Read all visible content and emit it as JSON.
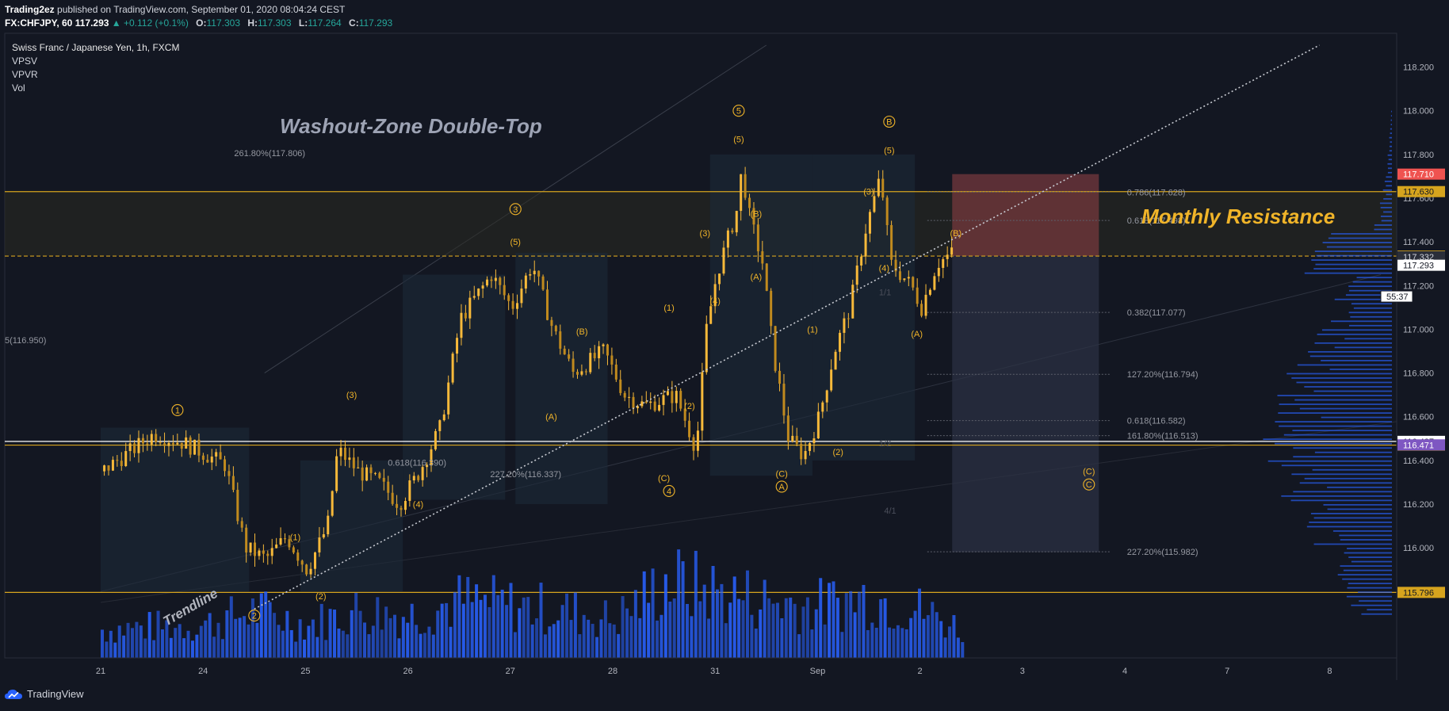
{
  "header": {
    "author": "Trading2ez",
    "published": "published on TradingView.com, September 01, 2020 08:04:24 CEST",
    "symbol": "FX:CHFJPY, 60",
    "last": "117.293",
    "change": "▲ +0.112 (+0.1%)",
    "ohlc": [
      {
        "k": "O:",
        "v": "117.303"
      },
      {
        "k": "H:",
        "v": "117.303"
      },
      {
        "k": "L:",
        "v": "117.264"
      },
      {
        "k": "C:",
        "v": "117.293"
      }
    ]
  },
  "legend": {
    "title": "Swiss Franc / Japanese Yen, 1h, FXCM",
    "indicators": [
      "VPSV",
      "VPVR",
      "Vol"
    ]
  },
  "footer": {
    "brand": "TradingView"
  },
  "colors": {
    "bg": "#131722",
    "candle": "#f7b93a",
    "gold": "#d6a41e",
    "label": "#f0b429",
    "volume": "#2962ff",
    "text": "#b2b5be"
  },
  "chart_data": {
    "type": "candlestick",
    "title": "Washout-Zone Double-Top",
    "ylim": [
      115.6,
      118.3
    ],
    "x_ticks": [
      "21",
      "24",
      "25",
      "26",
      "27",
      "28",
      "31",
      "Sep",
      "2",
      "3",
      "4",
      "7",
      "8"
    ],
    "y_ticks": [
      "118.200",
      "118.000",
      "117.800",
      "117.600",
      "117.400",
      "117.200",
      "117.000",
      "116.800",
      "116.600",
      "116.400",
      "116.200",
      "116.000",
      "115.800"
    ],
    "price_path": [
      {
        "x": 0.0,
        "y": 116.35
      },
      {
        "x": 0.3,
        "y": 116.45
      },
      {
        "x": 0.5,
        "y": 116.52
      },
      {
        "x": 0.8,
        "y": 116.48
      },
      {
        "x": 1.2,
        "y": 116.38
      },
      {
        "x": 1.4,
        "y": 116.0
      },
      {
        "x": 1.6,
        "y": 115.95
      },
      {
        "x": 1.8,
        "y": 116.05
      },
      {
        "x": 2.0,
        "y": 115.9
      },
      {
        "x": 2.2,
        "y": 116.1
      },
      {
        "x": 2.3,
        "y": 116.45
      },
      {
        "x": 2.5,
        "y": 116.35
      },
      {
        "x": 2.7,
        "y": 116.3
      },
      {
        "x": 2.9,
        "y": 116.2
      },
      {
        "x": 3.1,
        "y": 116.35
      },
      {
        "x": 3.3,
        "y": 116.55
      },
      {
        "x": 3.5,
        "y": 117.05
      },
      {
        "x": 3.8,
        "y": 117.25
      },
      {
        "x": 4.0,
        "y": 117.1
      },
      {
        "x": 4.2,
        "y": 117.3
      },
      {
        "x": 4.4,
        "y": 117.0
      },
      {
        "x": 4.6,
        "y": 116.8
      },
      {
        "x": 4.9,
        "y": 116.9
      },
      {
        "x": 5.1,
        "y": 116.7
      },
      {
        "x": 5.3,
        "y": 116.65
      },
      {
        "x": 5.6,
        "y": 116.7
      },
      {
        "x": 5.8,
        "y": 116.45
      },
      {
        "x": 5.9,
        "y": 117.0
      },
      {
        "x": 6.0,
        "y": 117.25
      },
      {
        "x": 6.1,
        "y": 117.4
      },
      {
        "x": 6.2,
        "y": 117.55
      },
      {
        "x": 6.25,
        "y": 117.75
      },
      {
        "x": 6.3,
        "y": 117.55
      },
      {
        "x": 6.45,
        "y": 117.3
      },
      {
        "x": 6.55,
        "y": 116.9
      },
      {
        "x": 6.7,
        "y": 116.5
      },
      {
        "x": 6.85,
        "y": 116.42
      },
      {
        "x": 7.0,
        "y": 116.6
      },
      {
        "x": 7.15,
        "y": 116.9
      },
      {
        "x": 7.3,
        "y": 117.1
      },
      {
        "x": 7.45,
        "y": 117.45
      },
      {
        "x": 7.6,
        "y": 117.7
      },
      {
        "x": 7.7,
        "y": 117.3
      },
      {
        "x": 7.9,
        "y": 117.2
      },
      {
        "x": 8.0,
        "y": 117.1
      },
      {
        "x": 8.15,
        "y": 117.3
      },
      {
        "x": 8.3,
        "y": 117.35
      }
    ],
    "volume_path": [
      {
        "x": 0.0,
        "y": 0.3
      },
      {
        "x": 1.0,
        "y": 0.35
      },
      {
        "x": 1.5,
        "y": 0.5
      },
      {
        "x": 2.0,
        "y": 0.35
      },
      {
        "x": 2.5,
        "y": 0.5
      },
      {
        "x": 3.0,
        "y": 0.45
      },
      {
        "x": 3.5,
        "y": 0.6
      },
      {
        "x": 4.0,
        "y": 0.55
      },
      {
        "x": 4.5,
        "y": 0.5
      },
      {
        "x": 5.0,
        "y": 0.4
      },
      {
        "x": 5.5,
        "y": 0.8
      },
      {
        "x": 6.0,
        "y": 0.7
      },
      {
        "x": 6.5,
        "y": 0.6
      },
      {
        "x": 7.0,
        "y": 0.55
      },
      {
        "x": 7.5,
        "y": 0.65
      },
      {
        "x": 8.0,
        "y": 0.5
      },
      {
        "x": 8.4,
        "y": 0.3
      }
    ],
    "horizontal_levels": [
      {
        "y": 117.63,
        "label": "117.630",
        "style": "solid",
        "color": "#d6a41e"
      },
      {
        "y": 117.335,
        "label": "117.335",
        "style": "dashed",
        "color": "#d6a41e"
      },
      {
        "y": 116.487,
        "label": "116.487",
        "style": "solid",
        "color": "#ffffff"
      },
      {
        "y": 116.47,
        "label": "116.470",
        "style": "solid",
        "color": "#d6a41e"
      },
      {
        "y": 115.796,
        "label": "115.796",
        "style": "solid",
        "color": "#d6a41e"
      }
    ],
    "price_labels": [
      {
        "y": 117.71,
        "text": "117.710",
        "bg": "#ef5350",
        "fg": "#ffffff"
      },
      {
        "y": 117.332,
        "text": "117.332",
        "bg": "#2a2e39",
        "fg": "#d1d4dc"
      },
      {
        "y": 117.293,
        "text": "117.293",
        "bg": "#ffffff",
        "fg": "#131722"
      },
      {
        "y": 117.15,
        "text": "55:37",
        "bg": "#ffffff",
        "fg": "#131722"
      },
      {
        "y": 116.471,
        "text": "116.471",
        "bg": "#7e57c2",
        "fg": "#ffffff"
      }
    ],
    "fib_labels": [
      {
        "x": 9.0,
        "y": 117.628,
        "text": "0.786(117.628)"
      },
      {
        "x": 9.0,
        "y": 117.498,
        "text": "0.618(117.498)"
      },
      {
        "x": 9.0,
        "y": 117.077,
        "text": "0.382(117.077)"
      },
      {
        "x": 9.0,
        "y": 116.794,
        "text": "127.20%(116.794)"
      },
      {
        "x": 9.0,
        "y": 116.582,
        "text": "0.618(116.582)"
      },
      {
        "x": 9.0,
        "y": 116.513,
        "text": "161.80%(116.513)"
      },
      {
        "x": 9.0,
        "y": 115.982,
        "text": "227.20%(115.982)"
      },
      {
        "x": 2.0,
        "y": 117.806,
        "text": "261.80%(117.806)"
      },
      {
        "x": 3.5,
        "y": 116.39,
        "text": "0.618(116.390)"
      },
      {
        "x": 4.5,
        "y": 116.337,
        "text": "227.20%(116.337)"
      },
      {
        "x": 0.0,
        "y": 116.95,
        "text": "5(116.950)"
      }
    ],
    "wave_labels": [
      {
        "x": 0.75,
        "y": 116.63,
        "text": "1",
        "circle": true
      },
      {
        "x": 1.9,
        "y": 116.05,
        "text": "(1)"
      },
      {
        "x": 2.45,
        "y": 116.7,
        "text": "(3)"
      },
      {
        "x": 3.1,
        "y": 116.2,
        "text": "(4)"
      },
      {
        "x": 1.5,
        "y": 115.69,
        "text": "2",
        "circle": true
      },
      {
        "x": 2.15,
        "y": 115.78,
        "text": "(2)"
      },
      {
        "x": 4.05,
        "y": 117.4,
        "text": "(5)"
      },
      {
        "x": 4.05,
        "y": 117.55,
        "text": "3",
        "circle": true
      },
      {
        "x": 4.7,
        "y": 116.99,
        "text": "(B)"
      },
      {
        "x": 4.4,
        "y": 116.6,
        "text": "(A)"
      },
      {
        "x": 5.75,
        "y": 116.65,
        "text": "(2)"
      },
      {
        "x": 5.55,
        "y": 117.1,
        "text": "(1)"
      },
      {
        "x": 5.5,
        "y": 116.32,
        "text": "(C)"
      },
      {
        "x": 5.55,
        "y": 116.26,
        "text": "4",
        "circle": true
      },
      {
        "x": 5.9,
        "y": 117.44,
        "text": "(3)"
      },
      {
        "x": 6.0,
        "y": 117.13,
        "text": "(4)"
      },
      {
        "x": 6.23,
        "y": 117.87,
        "text": "(5)"
      },
      {
        "x": 6.23,
        "y": 118.0,
        "text": "5",
        "circle": true
      },
      {
        "x": 6.4,
        "y": 117.53,
        "text": "(B)"
      },
      {
        "x": 6.4,
        "y": 117.24,
        "text": "(A)"
      },
      {
        "x": 6.65,
        "y": 116.34,
        "text": "(C)"
      },
      {
        "x": 6.65,
        "y": 116.28,
        "text": "A",
        "circle": true
      },
      {
        "x": 7.2,
        "y": 116.44,
        "text": "(2)"
      },
      {
        "x": 6.95,
        "y": 117.0,
        "text": "(1)"
      },
      {
        "x": 7.5,
        "y": 117.63,
        "text": "(3)"
      },
      {
        "x": 7.65,
        "y": 117.28,
        "text": "(4)"
      },
      {
        "x": 7.7,
        "y": 117.82,
        "text": "(5)"
      },
      {
        "x": 7.7,
        "y": 117.95,
        "text": "B",
        "circle": true
      },
      {
        "x": 7.97,
        "y": 116.98,
        "text": "(A)"
      },
      {
        "x": 8.35,
        "y": 117.44,
        "text": "(B)"
      },
      {
        "x": 9.65,
        "y": 116.35,
        "text": "(C)"
      },
      {
        "x": 9.65,
        "y": 116.29,
        "text": "C",
        "circle": true
      }
    ],
    "annotations": [
      {
        "text": "Monthly Resistance",
        "x": 12.2,
        "y": 117.5
      },
      {
        "text": "Trendline",
        "x": 1.85,
        "y": 115.75
      }
    ],
    "faint_labels": [
      {
        "x": 7.6,
        "y": 117.17,
        "text": "1/1"
      },
      {
        "x": 7.6,
        "y": 116.48,
        "text": "1/2"
      },
      {
        "x": 7.65,
        "y": 116.17,
        "text": "4/1"
      }
    ]
  }
}
